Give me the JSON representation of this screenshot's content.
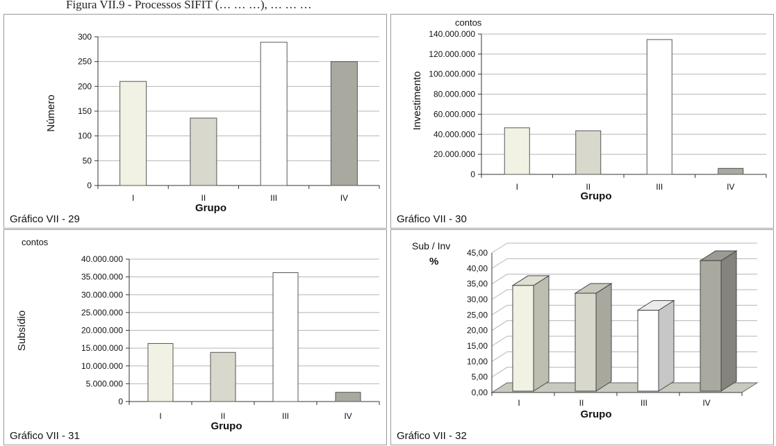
{
  "header": {
    "title": "Figura VII.9 - Processos SIFIT (… … …), … … …"
  },
  "chart_data": [
    {
      "type": "bar",
      "caption": "Gráfico VII - 29",
      "categories": [
        "I",
        "II",
        "III",
        "IV"
      ],
      "values": [
        210,
        136,
        289,
        250
      ],
      "xlabel": "Grupo",
      "ylabel": "Número",
      "unit_label": "",
      "ylim": [
        0,
        300
      ],
      "ytick_step": 50,
      "ytick_labels": [
        "0",
        "50",
        "100",
        "150",
        "200",
        "250",
        "300"
      ],
      "grid": true,
      "colors": [
        "#f2f2e4",
        "#d8d8cc",
        "#ffffff",
        "#a9a9a0"
      ]
    },
    {
      "type": "bar",
      "caption": "Gráfico VII - 30",
      "categories": [
        "I",
        "II",
        "III",
        "IV"
      ],
      "values": [
        46500000,
        43500000,
        134500000,
        6000000
      ],
      "xlabel": "Grupo",
      "ylabel": "Investimento",
      "unit_label": "contos",
      "ylim": [
        0,
        140000000
      ],
      "ytick_step": 20000000,
      "ytick_labels": [
        "0",
        "20.000.000",
        "40.000.000",
        "60.000.000",
        "80.000.000",
        "100.000.000",
        "120.000.000",
        "140.000.000"
      ],
      "grid": true,
      "colors": [
        "#f2f2e4",
        "#d8d8cc",
        "#ffffff",
        "#a9a9a0"
      ]
    },
    {
      "type": "bar",
      "caption": "Gráfico VII - 31",
      "categories": [
        "I",
        "II",
        "III",
        "IV"
      ],
      "values": [
        16300000,
        13800000,
        36200000,
        2600000
      ],
      "xlabel": "Grupo",
      "ylabel": "Subsídio",
      "unit_label": "contos",
      "ylim": [
        0,
        40000000
      ],
      "ytick_step": 5000000,
      "ytick_labels": [
        "0",
        "5.000.000",
        "10.000.000",
        "15.000.000",
        "20.000.000",
        "25.000.000",
        "30.000.000",
        "35.000.000",
        "40.000.000"
      ],
      "grid": true,
      "colors": [
        "#f2f2e4",
        "#d8d8cc",
        "#ffffff",
        "#a9a9a0"
      ]
    },
    {
      "type": "bar",
      "caption": "Gráfico VII - 32",
      "categories": [
        "I",
        "II",
        "III",
        "IV"
      ],
      "values": [
        34.5,
        32.0,
        26.5,
        42.5
      ],
      "xlabel": "Grupo",
      "ylabel": "Sub / Inv",
      "unit_label": "%",
      "ylim": [
        0,
        45
      ],
      "ytick_step": 5,
      "ytick_labels": [
        "0,00",
        "5,00",
        "10,00",
        "15,00",
        "20,00",
        "25,00",
        "30,00",
        "35,00",
        "40,00",
        "45,00"
      ],
      "grid": true,
      "style": "3d",
      "colors": [
        "#f2f2e4",
        "#d8d8cc",
        "#ffffff",
        "#a9a9a0"
      ]
    }
  ]
}
